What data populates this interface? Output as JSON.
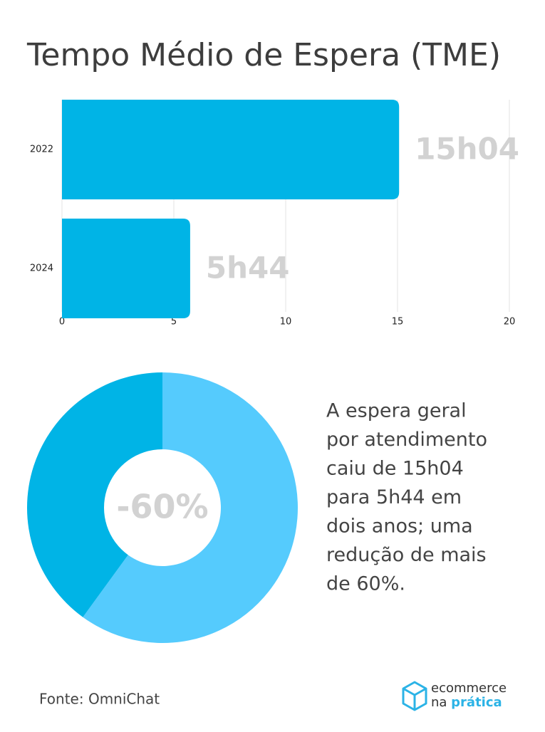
{
  "chart_data": [
    {
      "type": "bar",
      "orientation": "horizontal",
      "title": "Tempo Médio de Espera (TME)",
      "categories": [
        "2022",
        "2024"
      ],
      "values": [
        15.07,
        5.73
      ],
      "value_labels": [
        "15h04",
        "5h44"
      ],
      "color": "#00b4e6",
      "xlim": [
        0,
        20
      ],
      "xticks": [
        0,
        5,
        10,
        15,
        20
      ],
      "grid": true
    },
    {
      "type": "donut",
      "values": [
        60,
        40
      ],
      "colors": [
        "#55cbfd",
        "#00b4e6"
      ],
      "center_label": "-60%"
    }
  ],
  "description": [
    "A espera geral",
    "por atendimento",
    "caiu de 15h04",
    "para 5h44 em",
    "dois anos; uma",
    "redução de mais",
    "de 60%."
  ],
  "source": "Fonte: OmniChat",
  "logo": {
    "line1": "ecommerce",
    "line2a": "na ",
    "line2b": "prática"
  }
}
